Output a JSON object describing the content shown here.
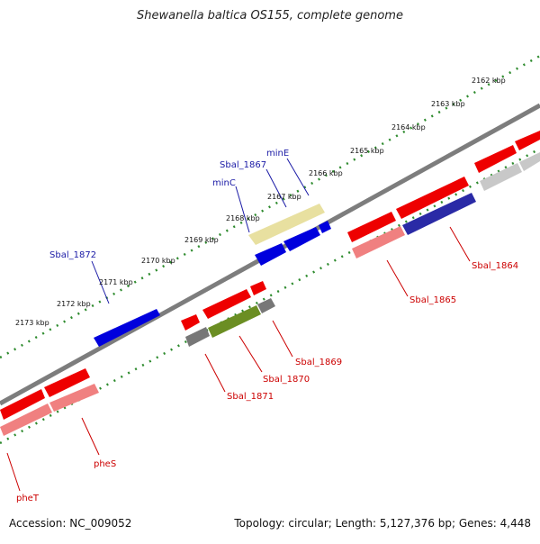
{
  "title": "Shewanella baltica OS155, complete genome",
  "accession": "Accession: NC_009052",
  "summary": "Topology: circular; Length: 5,127,376 bp; Genes: 4,448",
  "ticks": [
    "2162 kbp",
    "2163 kbp",
    "2164 kbp",
    "2165 kbp",
    "2166 kbp",
    "2167 kbp",
    "2168 kbp",
    "2169 kbp",
    "2170 kbp",
    "2171 kbp",
    "2172 kbp",
    "2173 kbp"
  ],
  "genes_top": [
    "minE",
    "Sbal_1867",
    "minC",
    "Sbal_1872"
  ],
  "genes_bottom": [
    "Sbal_1864",
    "Sbal_1865",
    "Sbal_1869",
    "Sbal_1870",
    "Sbal_1871",
    "pheS",
    "pheT"
  ],
  "colors": {
    "forward_cds": "#0000dd",
    "reverse_cds": "#ee0000",
    "backbone": "#888888",
    "tick_dots": "#2e8b2e"
  }
}
